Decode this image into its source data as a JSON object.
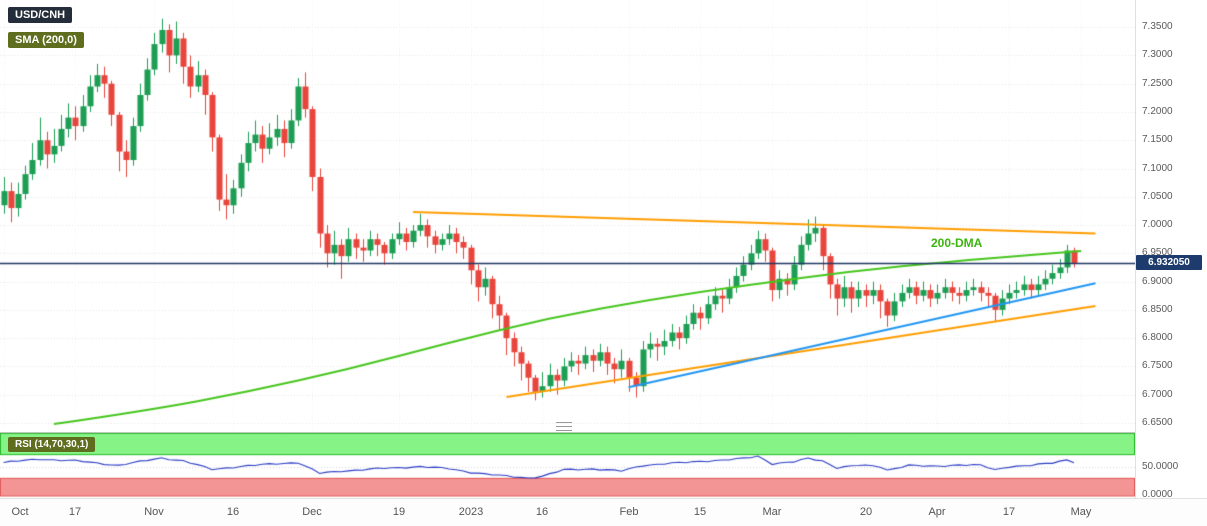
{
  "legend": {
    "symbol": "USD/CNH",
    "sma": "SMA (200,0)",
    "rsi": "RSI (14,70,30,1)"
  },
  "price_axis": {
    "ticks": [
      {
        "label": "7.3500",
        "value": 7.35
      },
      {
        "label": "7.3000",
        "value": 7.3
      },
      {
        "label": "7.2500",
        "value": 7.25
      },
      {
        "label": "7.2000",
        "value": 7.2
      },
      {
        "label": "7.1500",
        "value": 7.15
      },
      {
        "label": "7.1000",
        "value": 7.1
      },
      {
        "label": "7.0500",
        "value": 7.05
      },
      {
        "label": "7.0000",
        "value": 7.0
      },
      {
        "label": "6.9500",
        "value": 6.95
      },
      {
        "label": "6.9000",
        "value": 6.9
      },
      {
        "label": "6.8500",
        "value": 6.85
      },
      {
        "label": "6.8000",
        "value": 6.8
      },
      {
        "label": "6.7500",
        "value": 6.75
      },
      {
        "label": "6.7000",
        "value": 6.7
      },
      {
        "label": "6.6500",
        "value": 6.65
      }
    ],
    "badge": {
      "label": "6.932050",
      "value": 6.93205
    }
  },
  "time_axis": {
    "ticks": [
      {
        "label": "Oct",
        "idx": 0
      },
      {
        "label": "17",
        "idx": 10
      },
      {
        "label": "Nov",
        "idx": 21
      },
      {
        "label": "16",
        "idx": 32
      },
      {
        "label": "Dec",
        "idx": 43
      },
      {
        "label": "19",
        "idx": 55
      },
      {
        "label": "2023",
        "idx": 65
      },
      {
        "label": "16",
        "idx": 75
      },
      {
        "label": "Feb",
        "idx": 87
      },
      {
        "label": "15",
        "idx": 97
      },
      {
        "label": "Mar",
        "idx": 107
      },
      {
        "label": "20",
        "idx": 120
      },
      {
        "label": "Apr",
        "idx": 130
      },
      {
        "label": "17",
        "idx": 140
      },
      {
        "label": "May",
        "idx": 150
      }
    ]
  },
  "rsi_axis": {
    "ticks": [
      {
        "label": "50.0000",
        "value": 50
      },
      {
        "label": "0.0000",
        "value": 0
      }
    ]
  },
  "annotations": {
    "dma_label": {
      "text": "200-DMA",
      "idx": 133,
      "price": 6.968
    }
  },
  "colors": {
    "up": "#1d9e54",
    "down": "#e8453c",
    "sma": "#46c51d",
    "trend_orange": "#ff9d00",
    "trend_blue": "#2196f3",
    "price_line": "#1f3864",
    "rsi_line": "#2b3cc4",
    "rsi_green_fill": "#86f386",
    "rsi_green_edge": "#2db82d",
    "rsi_red_fill": "#f49595",
    "rsi_red_edge": "#e05b5b",
    "badge_symbol_bg": "#242e3a",
    "badge_indicator_bg": "#5f6e1e",
    "price_badge_bg": "#1d3c6d",
    "dma_label_color": "#3cb50f",
    "grid": "#e6e6e6",
    "axis_text": "#5a5a5a"
  },
  "chart_data": {
    "type": "candlestick",
    "title": "USD/CNH",
    "x_range": "Oct 2022 - May 2023",
    "ylim": [
      6.634,
      7.398
    ],
    "last_price": 6.93205,
    "candles": [
      [
        7.035,
        7.085,
        7.02,
        7.06
      ],
      [
        7.06,
        7.075,
        7.005,
        7.03
      ],
      [
        7.03,
        7.075,
        7.015,
        7.055
      ],
      [
        7.055,
        7.105,
        7.045,
        7.09
      ],
      [
        7.09,
        7.145,
        7.08,
        7.115
      ],
      [
        7.115,
        7.19,
        7.105,
        7.15
      ],
      [
        7.15,
        7.165,
        7.1,
        7.125
      ],
      [
        7.125,
        7.17,
        7.11,
        7.14
      ],
      [
        7.14,
        7.195,
        7.13,
        7.17
      ],
      [
        7.17,
        7.215,
        7.155,
        7.19
      ],
      [
        7.19,
        7.21,
        7.15,
        7.175
      ],
      [
        7.175,
        7.23,
        7.165,
        7.21
      ],
      [
        7.21,
        7.265,
        7.2,
        7.245
      ],
      [
        7.245,
        7.285,
        7.235,
        7.265
      ],
      [
        7.265,
        7.28,
        7.225,
        7.25
      ],
      [
        7.25,
        7.255,
        7.175,
        7.195
      ],
      [
        7.195,
        7.2,
        7.095,
        7.13
      ],
      [
        7.13,
        7.15,
        7.085,
        7.115
      ],
      [
        7.115,
        7.19,
        7.105,
        7.175
      ],
      [
        7.175,
        7.25,
        7.165,
        7.23
      ],
      [
        7.23,
        7.295,
        7.22,
        7.275
      ],
      [
        7.275,
        7.34,
        7.265,
        7.32
      ],
      [
        7.32,
        7.365,
        7.305,
        7.345
      ],
      [
        7.345,
        7.355,
        7.27,
        7.3
      ],
      [
        7.3,
        7.36,
        7.285,
        7.33
      ],
      [
        7.33,
        7.34,
        7.25,
        7.28
      ],
      [
        7.28,
        7.3,
        7.225,
        7.245
      ],
      [
        7.245,
        7.29,
        7.235,
        7.265
      ],
      [
        7.265,
        7.275,
        7.195,
        7.23
      ],
      [
        7.23,
        7.235,
        7.13,
        7.155
      ],
      [
        7.155,
        7.16,
        7.025,
        7.045
      ],
      [
        7.045,
        7.09,
        7.01,
        7.035
      ],
      [
        7.035,
        7.08,
        7.02,
        7.065
      ],
      [
        7.065,
        7.125,
        7.05,
        7.11
      ],
      [
        7.11,
        7.165,
        7.095,
        7.145
      ],
      [
        7.145,
        7.185,
        7.13,
        7.16
      ],
      [
        7.16,
        7.175,
        7.11,
        7.135
      ],
      [
        7.135,
        7.18,
        7.125,
        7.155
      ],
      [
        7.155,
        7.195,
        7.14,
        7.17
      ],
      [
        7.17,
        7.185,
        7.12,
        7.145
      ],
      [
        7.145,
        7.205,
        7.135,
        7.185
      ],
      [
        7.185,
        7.26,
        7.175,
        7.245
      ],
      [
        7.245,
        7.27,
        7.19,
        7.205
      ],
      [
        7.205,
        7.21,
        7.06,
        7.085
      ],
      [
        7.085,
        7.1,
        6.96,
        6.985
      ],
      [
        6.985,
        7.0,
        6.925,
        6.95
      ],
      [
        6.95,
        6.99,
        6.93,
        6.965
      ],
      [
        6.965,
        6.975,
        6.905,
        6.945
      ],
      [
        6.945,
        6.995,
        6.935,
        6.975
      ],
      [
        6.975,
        6.985,
        6.94,
        6.96
      ],
      [
        6.96,
        6.975,
        6.935,
        6.955
      ],
      [
        6.955,
        6.99,
        6.945,
        6.975
      ],
      [
        6.975,
        6.985,
        6.945,
        6.965
      ],
      [
        6.965,
        6.97,
        6.93,
        6.95
      ],
      [
        6.95,
        6.985,
        6.94,
        6.975
      ],
      [
        6.975,
        7.005,
        6.965,
        6.985
      ],
      [
        6.985,
        6.995,
        6.955,
        6.97
      ],
      [
        6.97,
        7.0,
        6.96,
        6.99
      ],
      [
        6.99,
        7.02,
        6.98,
        7.0
      ],
      [
        7.0,
        7.01,
        6.96,
        6.98
      ],
      [
        6.98,
        6.99,
        6.95,
        6.965
      ],
      [
        6.965,
        6.985,
        6.955,
        6.975
      ],
      [
        6.975,
        7.0,
        6.965,
        6.985
      ],
      [
        6.985,
        6.995,
        6.95,
        6.97
      ],
      [
        6.97,
        6.98,
        6.94,
        6.96
      ],
      [
        6.96,
        6.965,
        6.895,
        6.92
      ],
      [
        6.92,
        6.93,
        6.865,
        6.89
      ],
      [
        6.89,
        6.925,
        6.875,
        6.905
      ],
      [
        6.905,
        6.91,
        6.835,
        6.86
      ],
      [
        6.86,
        6.875,
        6.815,
        6.84
      ],
      [
        6.84,
        6.845,
        6.77,
        6.8
      ],
      [
        6.8,
        6.81,
        6.75,
        6.775
      ],
      [
        6.775,
        6.785,
        6.725,
        6.755
      ],
      [
        6.755,
        6.76,
        6.705,
        6.73
      ],
      [
        6.73,
        6.735,
        6.69,
        6.705
      ],
      [
        6.705,
        6.74,
        6.695,
        6.715
      ],
      [
        6.715,
        6.755,
        6.705,
        6.735
      ],
      [
        6.735,
        6.745,
        6.7,
        6.725
      ],
      [
        6.725,
        6.765,
        6.715,
        6.75
      ],
      [
        6.75,
        6.775,
        6.74,
        6.76
      ],
      [
        6.76,
        6.77,
        6.735,
        6.755
      ],
      [
        6.755,
        6.785,
        6.745,
        6.77
      ],
      [
        6.77,
        6.78,
        6.74,
        6.76
      ],
      [
        6.76,
        6.79,
        6.75,
        6.775
      ],
      [
        6.775,
        6.785,
        6.735,
        6.755
      ],
      [
        6.755,
        6.765,
        6.72,
        6.745
      ],
      [
        6.745,
        6.78,
        6.73,
        6.76
      ],
      [
        6.76,
        6.765,
        6.705,
        6.73
      ],
      [
        6.73,
        6.74,
        6.695,
        6.715
      ],
      [
        6.715,
        6.795,
        6.705,
        6.78
      ],
      [
        6.78,
        6.81,
        6.765,
        6.79
      ],
      [
        6.79,
        6.8,
        6.76,
        6.785
      ],
      [
        6.785,
        6.815,
        6.77,
        6.795
      ],
      [
        6.795,
        6.825,
        6.785,
        6.81
      ],
      [
        6.81,
        6.82,
        6.78,
        6.8
      ],
      [
        6.8,
        6.84,
        6.79,
        6.825
      ],
      [
        6.825,
        6.86,
        6.815,
        6.845
      ],
      [
        6.845,
        6.855,
        6.815,
        6.835
      ],
      [
        6.835,
        6.875,
        6.825,
        6.86
      ],
      [
        6.86,
        6.89,
        6.85,
        6.875
      ],
      [
        6.875,
        6.885,
        6.845,
        6.87
      ],
      [
        6.87,
        6.905,
        6.86,
        6.89
      ],
      [
        6.89,
        6.925,
        6.88,
        6.91
      ],
      [
        6.91,
        6.945,
        6.9,
        6.93
      ],
      [
        6.93,
        6.965,
        6.92,
        6.95
      ],
      [
        6.95,
        6.99,
        6.94,
        6.975
      ],
      [
        6.975,
        6.985,
        6.935,
        6.955
      ],
      [
        6.955,
        6.96,
        6.865,
        6.885
      ],
      [
        6.885,
        6.92,
        6.87,
        6.905
      ],
      [
        6.905,
        6.915,
        6.875,
        6.895
      ],
      [
        6.895,
        6.945,
        6.885,
        6.93
      ],
      [
        6.93,
        6.98,
        6.92,
        6.965
      ],
      [
        6.965,
        7.01,
        6.955,
        6.985
      ],
      [
        6.985,
        7.015,
        6.97,
        6.995
      ],
      [
        6.995,
        7.0,
        6.92,
        6.945
      ],
      [
        6.945,
        6.95,
        6.87,
        6.895
      ],
      [
        6.895,
        6.905,
        6.84,
        6.87
      ],
      [
        6.87,
        6.91,
        6.855,
        6.89
      ],
      [
        6.89,
        6.9,
        6.845,
        6.87
      ],
      [
        6.87,
        6.9,
        6.855,
        6.885
      ],
      [
        6.885,
        6.895,
        6.855,
        6.875
      ],
      [
        6.875,
        6.9,
        6.86,
        6.885
      ],
      [
        6.885,
        6.895,
        6.835,
        6.865
      ],
      [
        6.865,
        6.87,
        6.82,
        6.84
      ],
      [
        6.84,
        6.88,
        6.83,
        6.865
      ],
      [
        6.865,
        6.895,
        6.855,
        6.88
      ],
      [
        6.88,
        6.905,
        6.87,
        6.89
      ],
      [
        6.89,
        6.9,
        6.86,
        6.875
      ],
      [
        6.875,
        6.9,
        6.865,
        6.885
      ],
      [
        6.885,
        6.895,
        6.855,
        6.87
      ],
      [
        6.87,
        6.895,
        6.86,
        6.88
      ],
      [
        6.88,
        6.905,
        6.87,
        6.89
      ],
      [
        6.89,
        6.9,
        6.865,
        6.88
      ],
      [
        6.88,
        6.89,
        6.86,
        6.875
      ],
      [
        6.875,
        6.9,
        6.865,
        6.885
      ],
      [
        6.885,
        6.905,
        6.875,
        6.89
      ],
      [
        6.89,
        6.9,
        6.865,
        6.88
      ],
      [
        6.88,
        6.89,
        6.855,
        6.875
      ],
      [
        6.875,
        6.88,
        6.83,
        6.85
      ],
      [
        6.85,
        6.885,
        6.84,
        6.87
      ],
      [
        6.87,
        6.895,
        6.86,
        6.88
      ],
      [
        6.88,
        6.9,
        6.87,
        6.885
      ],
      [
        6.885,
        6.91,
        6.875,
        6.895
      ],
      [
        6.895,
        6.905,
        6.87,
        6.885
      ],
      [
        6.885,
        6.91,
        6.875,
        6.895
      ],
      [
        6.895,
        6.92,
        6.885,
        6.905
      ],
      [
        6.905,
        6.93,
        6.895,
        6.915
      ],
      [
        6.915,
        6.94,
        6.905,
        6.925
      ],
      [
        6.925,
        6.965,
        6.915,
        6.955
      ],
      [
        6.955,
        6.96,
        6.925,
        6.932
      ]
    ],
    "sma200_points": [
      [
        7,
        6.648
      ],
      [
        20,
        6.672
      ],
      [
        34,
        6.705
      ],
      [
        48,
        6.745
      ],
      [
        62,
        6.792
      ],
      [
        76,
        6.836
      ],
      [
        90,
        6.868
      ],
      [
        104,
        6.895
      ],
      [
        118,
        6.918
      ],
      [
        132,
        6.936
      ],
      [
        142,
        6.946
      ],
      [
        150,
        6.954
      ]
    ],
    "trendlines": [
      {
        "name": "descending-resistance",
        "color": "#ff9d00",
        "from_idx": 57,
        "from_price": 7.023,
        "to_idx": 152,
        "to_price": 6.985
      },
      {
        "name": "ascending-support",
        "color": "#ff9d00",
        "from_idx": 70,
        "from_price": 6.696,
        "to_idx": 152,
        "to_price": 6.857
      },
      {
        "name": "ascending-channel",
        "color": "#2196f3",
        "from_idx": 87,
        "from_price": 6.713,
        "to_idx": 152,
        "to_price": 6.897
      }
    ],
    "rsi": {
      "window": 14,
      "upper": 70,
      "lower": 30,
      "points": [
        [
          0,
          57
        ],
        [
          5,
          63
        ],
        [
          10,
          60
        ],
        [
          16,
          52
        ],
        [
          22,
          65
        ],
        [
          25,
          60
        ],
        [
          29,
          45
        ],
        [
          33,
          50
        ],
        [
          38,
          55
        ],
        [
          41,
          57
        ],
        [
          44,
          38
        ],
        [
          47,
          42
        ],
        [
          52,
          46
        ],
        [
          58,
          50
        ],
        [
          62,
          46
        ],
        [
          65,
          40
        ],
        [
          69,
          34
        ],
        [
          73,
          30
        ],
        [
          75,
          33
        ],
        [
          78,
          44
        ],
        [
          82,
          46
        ],
        [
          86,
          42
        ],
        [
          89,
          52
        ],
        [
          92,
          55
        ],
        [
          95,
          57
        ],
        [
          98,
          60
        ],
        [
          101,
          62
        ],
        [
          103,
          64
        ],
        [
          105,
          68
        ],
        [
          107,
          55
        ],
        [
          110,
          58
        ],
        [
          112,
          64
        ],
        [
          114,
          60
        ],
        [
          116,
          48
        ],
        [
          119,
          52
        ],
        [
          122,
          50
        ],
        [
          123,
          44
        ],
        [
          126,
          52
        ],
        [
          129,
          50
        ],
        [
          133,
          53
        ],
        [
          136,
          52
        ],
        [
          138,
          44
        ],
        [
          140,
          50
        ],
        [
          143,
          52
        ],
        [
          146,
          56
        ],
        [
          148,
          62
        ],
        [
          149,
          58
        ]
      ]
    }
  }
}
